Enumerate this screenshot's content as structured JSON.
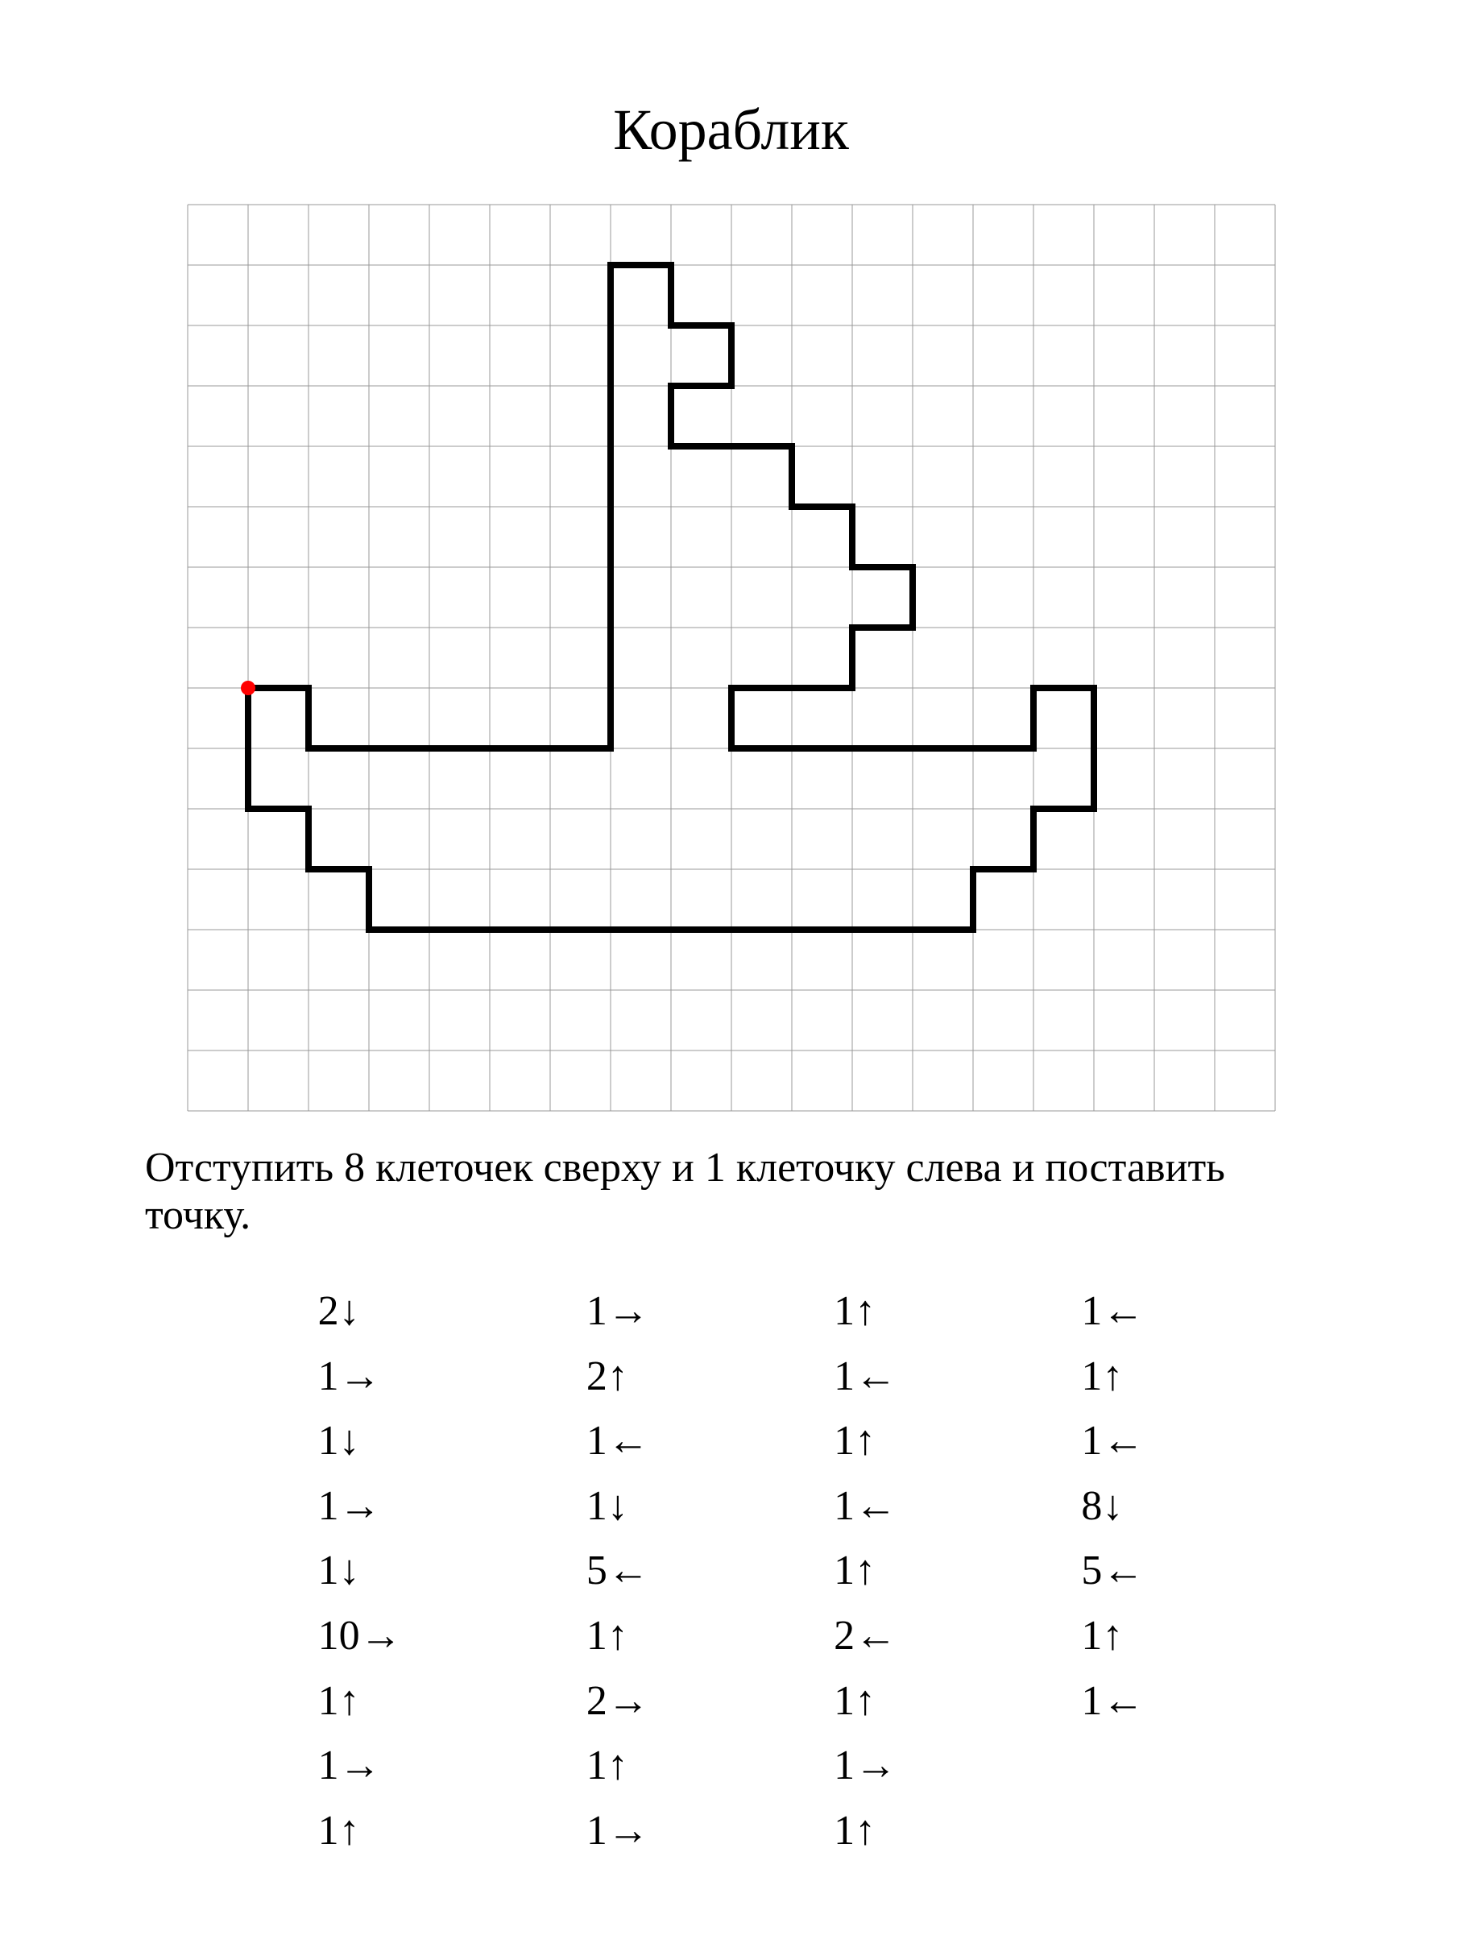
{
  "title": "Кораблик",
  "instruction": "Отступить 8 клеточек сверху и 1 клеточку слева и поставить точку.",
  "grid": {
    "cols": 18,
    "rows": 15,
    "cell": 75,
    "border_color": "#999999",
    "border_width": 1,
    "bg": "#ffffff",
    "line_color": "#000000",
    "line_width": 8,
    "start": {
      "col": 1,
      "row": 8,
      "dot_color": "#ff0000",
      "dot_radius": 9
    }
  },
  "arrows": {
    "down": "↓",
    "up": "↑",
    "left": "←",
    "right": "→"
  },
  "steps": [
    [
      {
        "n": 2,
        "d": "down"
      },
      {
        "n": 1,
        "d": "right"
      },
      {
        "n": 1,
        "d": "down"
      },
      {
        "n": 1,
        "d": "right"
      },
      {
        "n": 1,
        "d": "down"
      },
      {
        "n": 10,
        "d": "right"
      },
      {
        "n": 1,
        "d": "up"
      },
      {
        "n": 1,
        "d": "right"
      },
      {
        "n": 1,
        "d": "up"
      }
    ],
    [
      {
        "n": 1,
        "d": "right"
      },
      {
        "n": 2,
        "d": "up"
      },
      {
        "n": 1,
        "d": "left"
      },
      {
        "n": 1,
        "d": "down"
      },
      {
        "n": 5,
        "d": "left"
      },
      {
        "n": 1,
        "d": "up"
      },
      {
        "n": 2,
        "d": "right"
      },
      {
        "n": 1,
        "d": "up"
      },
      {
        "n": 1,
        "d": "right"
      }
    ],
    [
      {
        "n": 1,
        "d": "up"
      },
      {
        "n": 1,
        "d": "left"
      },
      {
        "n": 1,
        "d": "up"
      },
      {
        "n": 1,
        "d": "left"
      },
      {
        "n": 1,
        "d": "up"
      },
      {
        "n": 2,
        "d": "left"
      },
      {
        "n": 1,
        "d": "up"
      },
      {
        "n": 1,
        "d": "right"
      },
      {
        "n": 1,
        "d": "up"
      }
    ],
    [
      {
        "n": 1,
        "d": "left"
      },
      {
        "n": 1,
        "d": "up"
      },
      {
        "n": 1,
        "d": "left"
      },
      {
        "n": 8,
        "d": "down"
      },
      {
        "n": 5,
        "d": "left"
      },
      {
        "n": 1,
        "d": "up"
      },
      {
        "n": 1,
        "d": "left"
      }
    ]
  ],
  "colors": {
    "text": "#000000",
    "bg": "#ffffff"
  },
  "fonts": {
    "family": "Times New Roman",
    "title_size": 72,
    "body_size": 52
  }
}
